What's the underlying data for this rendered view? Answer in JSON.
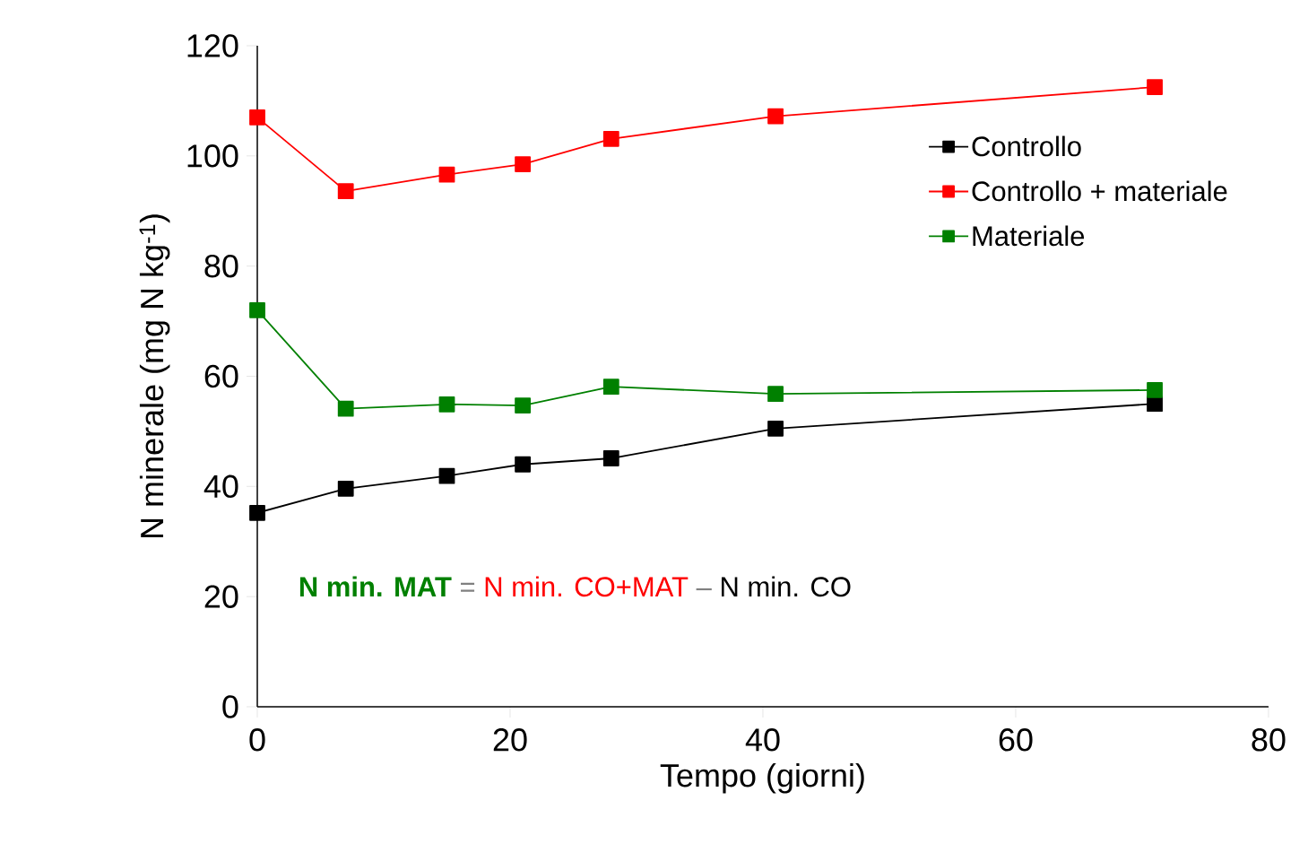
{
  "chart_data": {
    "type": "line",
    "xlabel": "Tempo (giorni)",
    "ylabel": "N minerale (mg N kg$^{-1}$)",
    "x": [
      0,
      7,
      15,
      21,
      28,
      41,
      71
    ],
    "series": [
      {
        "name": "Controllo",
        "color": "#000000",
        "values": [
          35.2,
          39.6,
          41.9,
          44.0,
          45.1,
          50.5,
          55.0
        ]
      },
      {
        "name": "Controllo + materiale",
        "color": "#ff0000",
        "values": [
          107.0,
          93.6,
          96.6,
          98.5,
          103.1,
          107.2,
          112.5
        ]
      },
      {
        "name": "Materiale",
        "color": "#008000",
        "values": [
          72.0,
          54.1,
          54.9,
          54.7,
          58.1,
          56.8,
          57.5
        ]
      }
    ],
    "xlim": [
      0,
      80
    ],
    "xticks": [
      0,
      20,
      40,
      60,
      80
    ],
    "ylim": [
      0,
      120
    ],
    "yticks": [
      0,
      20,
      40,
      60,
      80,
      100,
      120
    ],
    "grid": false,
    "legend": "top right",
    "marker": "square",
    "line_style": "solid",
    "annotations": [
      "N min. MAT",
      "=",
      "N min. CO+MAT",
      "–",
      "N min. CO"
    ]
  }
}
